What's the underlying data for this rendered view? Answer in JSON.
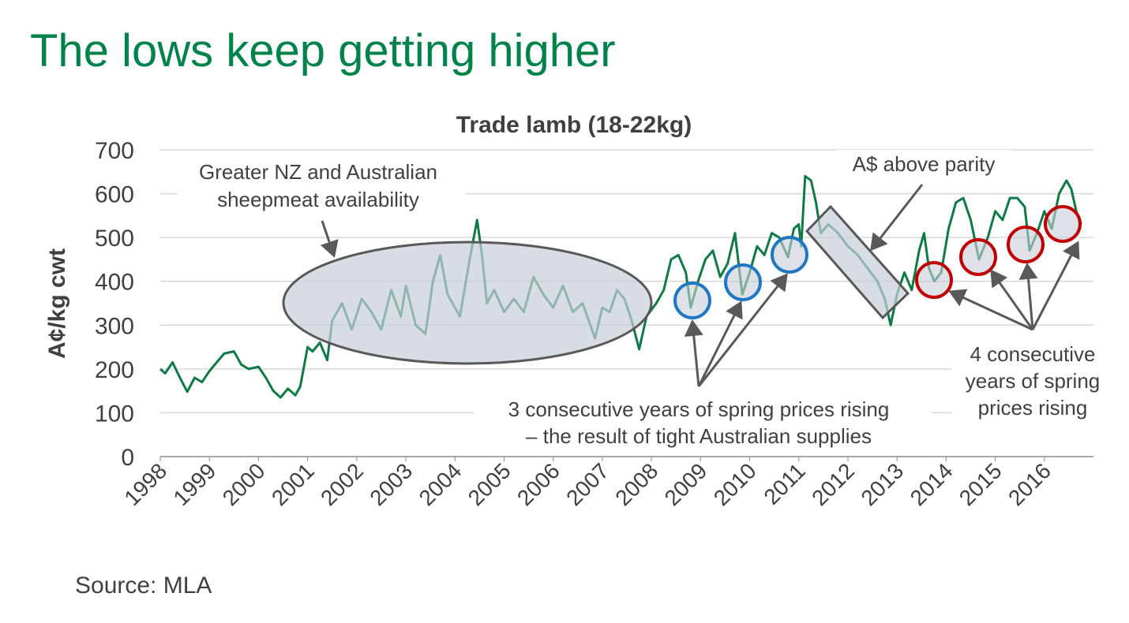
{
  "slide_title": "The lows keep getting higher",
  "source": "Source: MLA",
  "annotations": [
    {
      "lines": [
        "Greater NZ and Australian",
        "sheepmeat availability"
      ]
    },
    {
      "lines": [
        "A$ above parity"
      ]
    },
    {
      "lines": [
        "3 consecutive years of spring prices rising",
        "– the result of tight Australian supplies"
      ]
    },
    {
      "lines": [
        "4 consecutive",
        "years of spring",
        "prices rising"
      ]
    }
  ],
  "chart_data": {
    "type": "line",
    "title": "Trade lamb (18-22kg)",
    "y_label": "A¢/kg cwt",
    "color": "#0f7a45",
    "x": [
      1998.0,
      1998.1,
      1998.25,
      1998.4,
      1998.55,
      1998.7,
      1998.85,
      1999.0,
      1999.15,
      1999.3,
      1999.5,
      1999.65,
      1999.8,
      2000.0,
      2000.15,
      2000.3,
      2000.45,
      2000.6,
      2000.75,
      2000.85,
      2001.0,
      2001.1,
      2001.25,
      2001.4,
      2001.5,
      2001.7,
      2001.9,
      2002.1,
      2002.3,
      2002.5,
      2002.7,
      2002.9,
      2003.0,
      2003.2,
      2003.4,
      2003.55,
      2003.7,
      2003.85,
      2004.0,
      2004.1,
      2004.3,
      2004.45,
      2004.55,
      2004.65,
      2004.8,
      2005.0,
      2005.2,
      2005.4,
      2005.6,
      2005.8,
      2006.0,
      2006.2,
      2006.4,
      2006.6,
      2006.85,
      2007.0,
      2007.15,
      2007.3,
      2007.45,
      2007.6,
      2007.75,
      2007.9,
      2008.1,
      2008.25,
      2008.4,
      2008.55,
      2008.7,
      2008.8,
      2008.95,
      2009.1,
      2009.25,
      2009.4,
      2009.55,
      2009.7,
      2009.85,
      2010.0,
      2010.15,
      2010.3,
      2010.45,
      2010.6,
      2010.78,
      2010.9,
      2011.0,
      2011.05,
      2011.13,
      2011.25,
      2011.35,
      2011.45,
      2011.6,
      2011.8,
      2012.0,
      2012.2,
      2012.4,
      2012.6,
      2012.75,
      2012.87,
      2013.0,
      2013.15,
      2013.3,
      2013.45,
      2013.55,
      2013.65,
      2013.76,
      2013.9,
      2014.05,
      2014.2,
      2014.35,
      2014.5,
      2014.67,
      2014.85,
      2015.0,
      2015.15,
      2015.3,
      2015.45,
      2015.6,
      2015.7,
      2015.85,
      2016.0,
      2016.15,
      2016.3,
      2016.45,
      2016.55,
      2016.65,
      2016.75
    ],
    "values": [
      200,
      190,
      215,
      180,
      148,
      180,
      170,
      195,
      215,
      235,
      240,
      210,
      200,
      205,
      180,
      150,
      135,
      155,
      140,
      160,
      250,
      240,
      260,
      220,
      310,
      350,
      290,
      360,
      330,
      290,
      380,
      320,
      390,
      300,
      280,
      400,
      460,
      370,
      340,
      320,
      450,
      540,
      460,
      350,
      380,
      330,
      360,
      330,
      410,
      370,
      340,
      390,
      330,
      350,
      270,
      340,
      330,
      380,
      360,
      310,
      245,
      320,
      350,
      380,
      450,
      460,
      420,
      340,
      400,
      450,
      470,
      410,
      440,
      510,
      370,
      420,
      480,
      460,
      510,
      500,
      455,
      520,
      530,
      480,
      640,
      630,
      580,
      510,
      530,
      510,
      480,
      460,
      430,
      400,
      360,
      300,
      370,
      420,
      380,
      470,
      510,
      430,
      400,
      420,
      520,
      580,
      590,
      540,
      450,
      500,
      560,
      540,
      590,
      590,
      570,
      470,
      510,
      560,
      520,
      600,
      630,
      610,
      560,
      530
    ],
    "xlim": [
      1998,
      2017
    ],
    "ylim": [
      0,
      700
    ],
    "xticks": [
      1998,
      1999,
      2000,
      2001,
      2002,
      2003,
      2004,
      2005,
      2006,
      2007,
      2008,
      2009,
      2010,
      2011,
      2012,
      2013,
      2014,
      2015,
      2016
    ],
    "yticks": [
      0,
      100,
      200,
      300,
      400,
      500,
      600,
      700
    ],
    "grid": true
  }
}
